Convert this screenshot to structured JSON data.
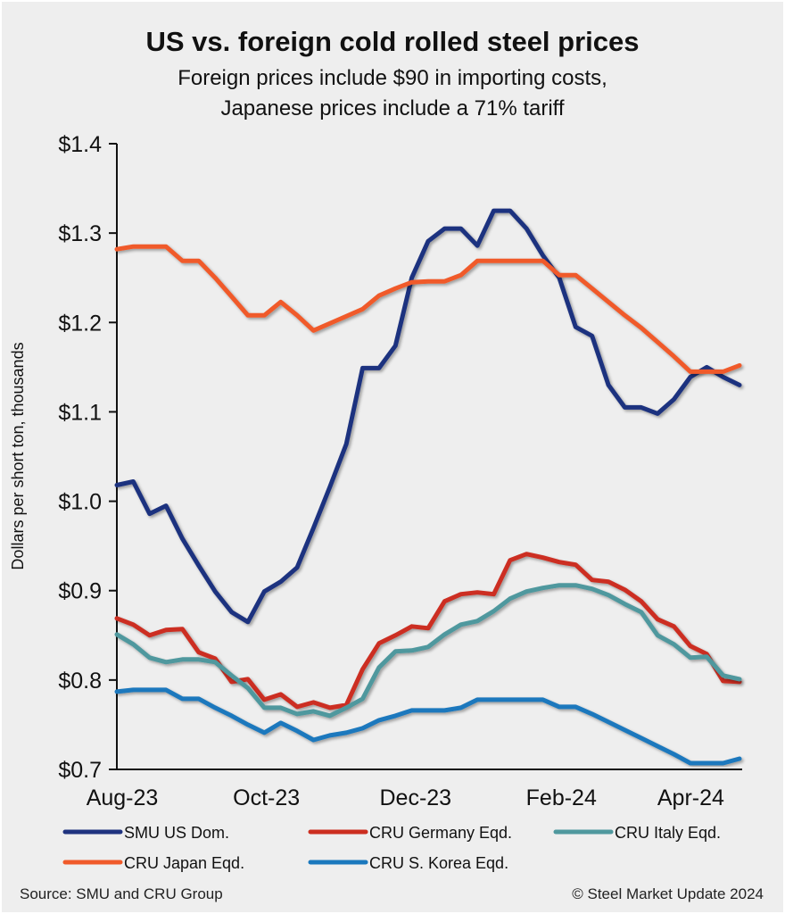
{
  "chart_data": {
    "type": "line",
    "title": "US vs. foreign cold rolled steel prices",
    "subtitle_lines": [
      "Foreign prices include $90 in importing costs,",
      "Japanese prices include a 71% tariff"
    ],
    "ylabel": "Dollars per short ton, thousands",
    "xlabel": "",
    "ylim": [
      0.7,
      1.4
    ],
    "yticks": [
      1.4,
      1.3,
      1.2,
      1.1,
      1.0,
      0.9,
      0.8,
      0.7
    ],
    "ytick_labels": [
      "$1.4",
      "$1.3",
      "$1.2",
      "$1.1",
      "$1.0",
      "$0.9",
      "$0.8",
      "$0.7"
    ],
    "x_points": 39,
    "xtick_labels": [
      {
        "label": "Aug-23",
        "index": 0
      },
      {
        "label": "Oct-23",
        "index": 8.8
      },
      {
        "label": "Dec-23",
        "index": 17.9
      },
      {
        "label": "Feb-24",
        "index": 26.8
      },
      {
        "label": "Apr-24",
        "index": 34.7
      }
    ],
    "grid": false,
    "legend_position": "bottom",
    "series": [
      {
        "name": "SMU US Dom.",
        "color": "#1f337f",
        "values": [
          1.018,
          1.022,
          0.986,
          0.995,
          0.958,
          0.928,
          0.899,
          0.876,
          0.865,
          0.899,
          0.91,
          0.926,
          0.97,
          1.016,
          1.064,
          1.149,
          1.149,
          1.174,
          1.25,
          1.291,
          1.305,
          1.305,
          1.286,
          1.325,
          1.325,
          1.305,
          1.275,
          1.25,
          1.195,
          1.185,
          1.13,
          1.105,
          1.105,
          1.098,
          1.114,
          1.139,
          1.15,
          1.139,
          1.13
        ]
      },
      {
        "name": "CRU Germany Eqd.",
        "color": "#cc2e20",
        "values": [
          0.869,
          0.862,
          0.85,
          0.856,
          0.857,
          0.831,
          0.824,
          0.798,
          0.801,
          0.778,
          0.784,
          0.77,
          0.775,
          0.769,
          0.772,
          0.812,
          0.841,
          0.85,
          0.86,
          0.858,
          0.888,
          0.896,
          0.898,
          0.896,
          0.934,
          0.941,
          0.937,
          0.932,
          0.929,
          0.912,
          0.91,
          0.901,
          0.888,
          0.868,
          0.86,
          0.838,
          0.829,
          0.799,
          0.798
        ]
      },
      {
        "name": "CRU Italy Eqd.",
        "color": "#4f989e",
        "values": [
          0.851,
          0.84,
          0.825,
          0.82,
          0.823,
          0.823,
          0.82,
          0.805,
          0.791,
          0.769,
          0.769,
          0.762,
          0.765,
          0.76,
          0.769,
          0.779,
          0.814,
          0.832,
          0.833,
          0.837,
          0.851,
          0.862,
          0.866,
          0.877,
          0.891,
          0.899,
          0.903,
          0.906,
          0.906,
          0.902,
          0.895,
          0.885,
          0.876,
          0.85,
          0.84,
          0.825,
          0.826,
          0.805,
          0.801
        ]
      },
      {
        "name": "CRU Japan Eqd.",
        "color": "#f05a2a",
        "values": [
          1.282,
          1.285,
          1.285,
          1.285,
          1.269,
          1.269,
          1.25,
          1.229,
          1.208,
          1.208,
          1.223,
          1.208,
          1.191,
          1.199,
          1.207,
          1.215,
          1.23,
          1.238,
          1.245,
          1.246,
          1.246,
          1.253,
          1.269,
          1.269,
          1.269,
          1.269,
          1.269,
          1.253,
          1.253,
          1.238,
          1.223,
          1.208,
          1.194,
          1.178,
          1.162,
          1.145,
          1.145,
          1.145,
          1.152
        ]
      },
      {
        "name": "CRU S. Korea Eqd.",
        "color": "#1a78bd",
        "values": [
          0.787,
          0.789,
          0.789,
          0.789,
          0.779,
          0.779,
          0.769,
          0.76,
          0.75,
          0.741,
          0.752,
          0.743,
          0.733,
          0.738,
          0.741,
          0.746,
          0.755,
          0.76,
          0.766,
          0.766,
          0.766,
          0.769,
          0.778,
          0.778,
          0.778,
          0.778,
          0.778,
          0.77,
          0.77,
          0.762,
          0.753,
          0.744,
          0.735,
          0.726,
          0.717,
          0.707,
          0.707,
          0.707,
          0.712
        ]
      }
    ]
  },
  "footer": {
    "source": "Source: SMU and CRU Group",
    "copyright": "© Steel Market Update 2024"
  }
}
